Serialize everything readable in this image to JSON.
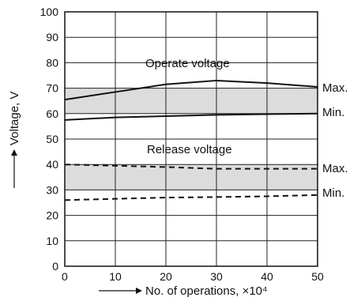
{
  "chart_data": {
    "type": "area",
    "xlabel": "No. of operations, ×10⁴",
    "ylabel": "Voltage, V",
    "xlim": [
      0,
      50
    ],
    "ylim": [
      0,
      100
    ],
    "xticks": [
      "0",
      "10",
      "20",
      "30",
      "40",
      "50"
    ],
    "yticks": [
      "0",
      "10",
      "20",
      "30",
      "40",
      "50",
      "60",
      "70",
      "80",
      "90",
      "100"
    ],
    "grid": true,
    "annotations": {
      "operate": "Operate voltage",
      "release": "Release voltage",
      "max": "Max.",
      "min": "Min."
    },
    "series": [
      {
        "name": "Operate voltage Max.",
        "style": "solid",
        "x": [
          0,
          10,
          20,
          30,
          40,
          50
        ],
        "y": [
          65.5,
          68.5,
          71.5,
          73,
          72,
          70.5
        ]
      },
      {
        "name": "Operate voltage Min.",
        "style": "solid",
        "x": [
          0,
          10,
          20,
          30,
          40,
          50
        ],
        "y": [
          57.5,
          58.5,
          59,
          59.5,
          59.8,
          60
        ]
      },
      {
        "name": "Release voltage Max.",
        "style": "dashed",
        "x": [
          0,
          10,
          20,
          30,
          40,
          50
        ],
        "y": [
          40,
          39.5,
          39,
          38.3,
          38.3,
          38.3
        ]
      },
      {
        "name": "Release voltage Min.",
        "style": "dashed",
        "x": [
          0,
          10,
          20,
          30,
          40,
          50
        ],
        "y": [
          26,
          26.5,
          27,
          27.2,
          27.5,
          28
        ]
      }
    ],
    "bands": [
      {
        "name": "Operate voltage band",
        "low": 60,
        "high": 70,
        "color": "#dcdcdc"
      },
      {
        "name": "Release voltage band",
        "low": 30,
        "high": 40,
        "color": "#dcdcdc"
      }
    ]
  }
}
